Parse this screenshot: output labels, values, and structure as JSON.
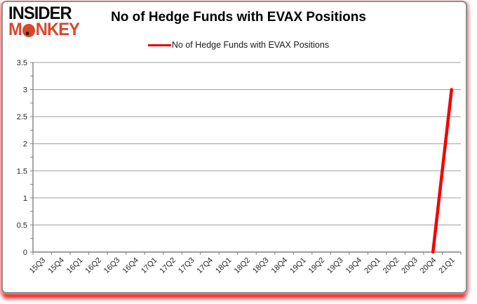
{
  "logo": {
    "insider": "INSIDER",
    "monkey_m": "M",
    "monkey_nkey": "NKEY",
    "brand_red": "#d9472b"
  },
  "header": {
    "title": "No of Hedge Funds with EVAX Positions"
  },
  "legend": {
    "label": "No of Hedge Funds with EVAX Positions",
    "line_color": "#e60000"
  },
  "chart_data": {
    "type": "line",
    "title": "No of Hedge Funds with EVAX Positions",
    "categories": [
      "15Q3",
      "15Q4",
      "16Q1",
      "16Q2",
      "16Q3",
      "16Q4",
      "17Q1",
      "17Q2",
      "17Q3",
      "17Q4",
      "18Q1",
      "18Q2",
      "18Q3",
      "18Q4",
      "19Q1",
      "19Q2",
      "19Q3",
      "19Q4",
      "20Q1",
      "20Q2",
      "20Q3",
      "20Q4",
      "21Q1"
    ],
    "series": [
      {
        "name": "No of Hedge Funds with EVAX Positions",
        "color": "#f40000",
        "values": [
          null,
          null,
          null,
          null,
          null,
          null,
          null,
          null,
          null,
          null,
          null,
          null,
          null,
          null,
          null,
          null,
          null,
          null,
          null,
          null,
          null,
          0,
          3
        ]
      }
    ],
    "xlabel": "",
    "ylabel": "",
    "ylim": [
      0,
      3.5
    ],
    "ytick_step": 0.5,
    "ytick_labels": [
      "0",
      "0.5",
      "1",
      "1.5",
      "2",
      "2.5",
      "3",
      "3.5"
    ],
    "grid": true,
    "legend_position": "top-center",
    "gridline_color": "#9d9d9d",
    "axis_color": "#808080"
  }
}
